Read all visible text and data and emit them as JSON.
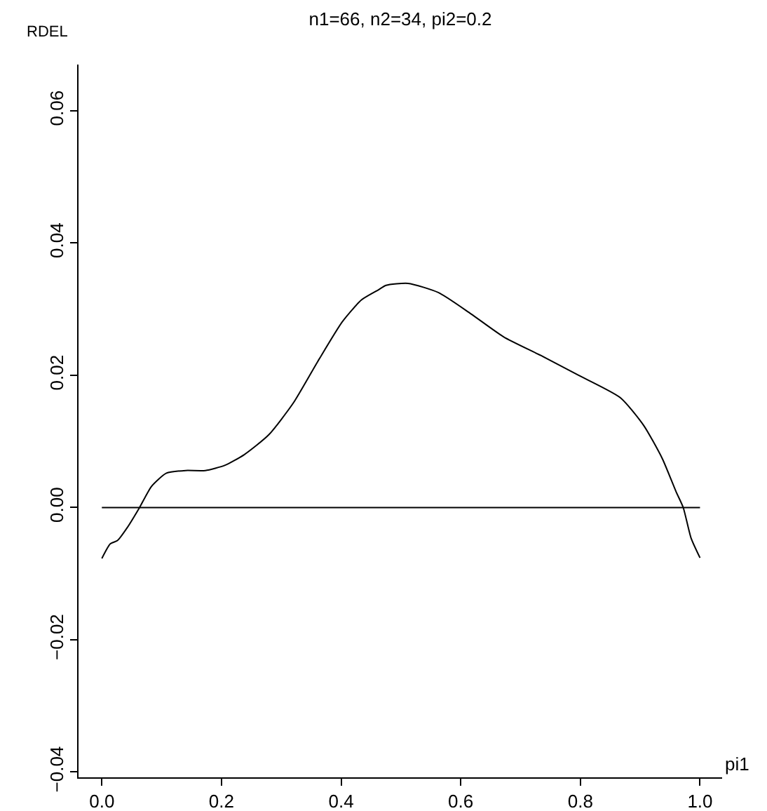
{
  "chart_data": {
    "type": "line",
    "title": "n1=66, n2=34, pi2=0.2",
    "xlabel": "pi1",
    "ylabel": "RDEL",
    "xlim": [
      -0.039,
      1.037
    ],
    "ylim": [
      -0.0408,
      0.067
    ],
    "xticks": [
      {
        "value": 0,
        "label": "0.0"
      },
      {
        "value": 0.2,
        "label": "0.2"
      },
      {
        "value": 0.4,
        "label": "0.4"
      },
      {
        "value": 0.6,
        "label": "0.6"
      },
      {
        "value": 0.8,
        "label": "0.8"
      },
      {
        "value": 1,
        "label": "1.0"
      }
    ],
    "yticks": [
      {
        "value": -0.04,
        "label": "−0.04"
      },
      {
        "value": -0.02,
        "label": "−0.02"
      },
      {
        "value": 0,
        "label": "0.00"
      },
      {
        "value": 0.02,
        "label": "0.02"
      },
      {
        "value": 0.04,
        "label": "0.04"
      },
      {
        "value": 0.06,
        "label": "0.06"
      }
    ],
    "marker": "none",
    "line_style": "solid",
    "series": [
      {
        "color": "#000000",
        "x": [
          0,
          0.014,
          0.026,
          0.042,
          0.063,
          0.083,
          0.108,
          0.14,
          0.173,
          0.206,
          0.238,
          0.279,
          0.32,
          0.361,
          0.402,
          0.434,
          0.462,
          0.475,
          0.512,
          0.563,
          0.617,
          0.672,
          0.734,
          0.797,
          0.867,
          0.906,
          0.937,
          0.96,
          0.972,
          0.985,
          1.0
        ],
        "values": [
          -0.0077,
          -0.0055,
          -0.005,
          -0.0031,
          0,
          0.0032,
          0.0052,
          0.0056,
          0.0056,
          0.0064,
          0.008,
          0.011,
          0.0158,
          0.0221,
          0.0281,
          0.0314,
          0.0329,
          0.0336,
          0.0339,
          0.0325,
          0.0293,
          0.0258,
          0.023,
          0.02,
          0.0166,
          0.0124,
          0.0074,
          0.0024,
          0,
          -0.0046,
          -0.0076
        ]
      },
      {
        "color": "#000000",
        "x": [
          0,
          1
        ],
        "values": [
          0,
          0
        ]
      }
    ]
  }
}
